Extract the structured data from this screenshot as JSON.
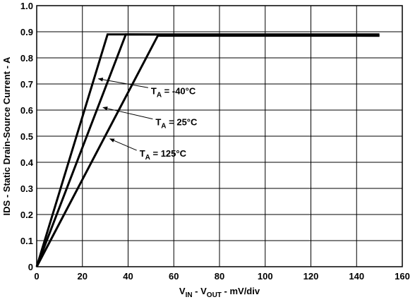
{
  "chart_data": {
    "type": "line",
    "title": "",
    "xlabel": {
      "main": "V",
      "sub1": "IN",
      "mid": " - V",
      "sub2": "OUT",
      "tail": " - mV/div"
    },
    "ylabel": "IDS - Static Drain-Source Current - A",
    "xlim": [
      0,
      160
    ],
    "ylim": [
      0,
      1.0
    ],
    "x_ticks": [
      "0",
      "20",
      "40",
      "60",
      "80",
      "100",
      "120",
      "140",
      "160"
    ],
    "y_ticks": [
      "0",
      "0.1",
      "0.2",
      "0.3",
      "0.4",
      "0.5",
      "0.6",
      "0.7",
      "0.8",
      "0.9",
      "1.0"
    ],
    "grid": true,
    "series": [
      {
        "label": {
          "main": "T",
          "sub": "A",
          "rest": " = -40°C"
        },
        "x": [
          0,
          31,
          150
        ],
        "y": [
          0,
          0.89,
          0.89
        ],
        "label_at": [
          50,
          0.675
        ],
        "arrow_to": [
          27,
          0.72
        ]
      },
      {
        "label": {
          "main": "T",
          "sub": "A",
          "rest": " = 25°C"
        },
        "x": [
          0,
          39,
          150
        ],
        "y": [
          0,
          0.89,
          0.885
        ],
        "label_at": [
          52,
          0.555
        ],
        "arrow_to": [
          29,
          0.61
        ]
      },
      {
        "label": {
          "main": "T",
          "sub": "A",
          "rest": " = 125°C"
        },
        "x": [
          0,
          53,
          150
        ],
        "y": [
          0,
          0.885,
          0.885
        ],
        "label_at": [
          45,
          0.435
        ],
        "arrow_to": [
          32,
          0.49
        ]
      }
    ]
  }
}
